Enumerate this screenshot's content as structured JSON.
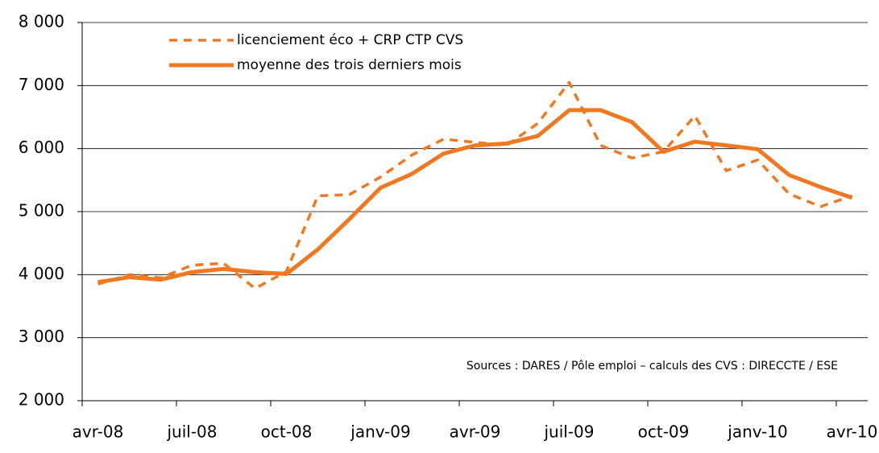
{
  "chart_data": {
    "type": "line",
    "categories": [
      "avr-08",
      null,
      null,
      "juil-08",
      null,
      null,
      "oct-08",
      null,
      null,
      "janv-09",
      null,
      null,
      "avr-09",
      null,
      null,
      "juil-09",
      null,
      null,
      "oct-09",
      null,
      null,
      "janv-10",
      null,
      null,
      "avr-10"
    ],
    "series": [
      {
        "name": "licenciement éco + CRP CTP CVS",
        "color": "#f07820",
        "dashed": true,
        "values": [
          3850,
          4000,
          3950,
          4150,
          4180,
          3780,
          4050,
          5250,
          5270,
          5550,
          5900,
          6150,
          6100,
          6050,
          6400,
          7050,
          6050,
          5850,
          5950,
          6520,
          5650,
          5820,
          5280,
          5080,
          5250
        ]
      },
      {
        "name": "moyenne des trois derniers mois",
        "color": "#f07820",
        "dashed": false,
        "values": [
          3880,
          3960,
          3920,
          4040,
          4090,
          4040,
          4010,
          4400,
          4880,
          5380,
          5600,
          5920,
          6050,
          6080,
          6200,
          6610,
          6610,
          6420,
          5950,
          6110,
          6050,
          5990,
          5580,
          5390,
          5220
        ]
      }
    ],
    "ylim": [
      2000,
      8000
    ],
    "yticks": [
      {
        "value": 2000,
        "label": "2 000"
      },
      {
        "value": 3000,
        "label": "3 000"
      },
      {
        "value": 4000,
        "label": "4 000"
      },
      {
        "value": 5000,
        "label": "5 000"
      },
      {
        "value": 6000,
        "label": "6 000"
      },
      {
        "value": 7000,
        "label": "7 000"
      },
      {
        "value": 8000,
        "label": "8 000"
      }
    ],
    "grid": true,
    "legend": "top-left",
    "annotation": "Sources : DARES / Pôle emploi – calculs des CVS : DIRECCTE / ESE"
  }
}
